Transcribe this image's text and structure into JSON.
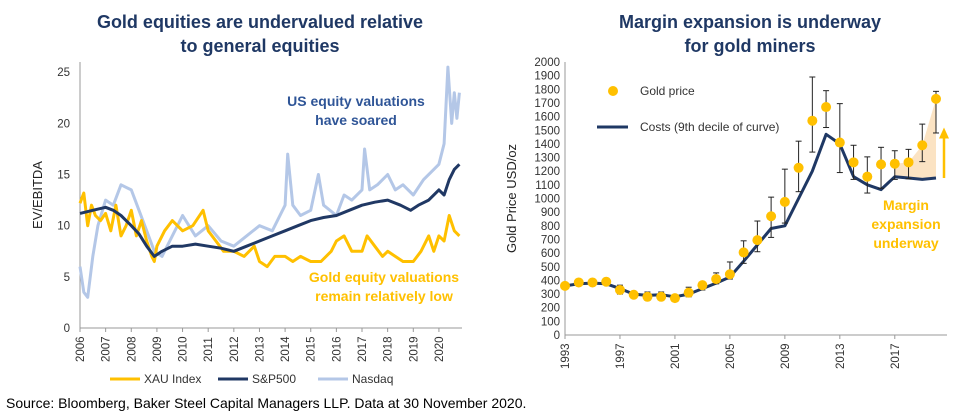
{
  "left_title": [
    "Gold equities are undervalued relative",
    "to general equities"
  ],
  "right_title": [
    "Margin expansion is underway",
    "for gold miners"
  ],
  "source": "Source: Bloomberg, Baker Steel Capital Managers LLP. Data at 30 November 2020.",
  "colors": {
    "xau": "#ffc000",
    "sp500": "#203864",
    "nasdaq": "#b4c7e7",
    "gold_dot": "#ffc000",
    "costs": "#1f3864",
    "shade": "#fbe0bd",
    "anno_blue": "#2f5597",
    "anno_gold": "#ffc000"
  },
  "chart_data": [
    {
      "type": "line",
      "title": "Gold equities are undervalued relative to general equities",
      "xlabel": "",
      "ylabel": "EV/EBITDA",
      "xlim": [
        2006,
        2020.9
      ],
      "ylim": [
        0,
        26
      ],
      "yticks": [
        0,
        5,
        10,
        15,
        20,
        25
      ],
      "xticks": [
        "2006",
        "2007",
        "2008",
        "2009",
        "2010",
        "2011",
        "2012",
        "2013",
        "2014",
        "2015",
        "2016",
        "2017",
        "2018",
        "2019",
        "2020"
      ],
      "legend_position": "bottom",
      "annotations": [
        {
          "text": [
            "US equity valuations",
            "have soared"
          ],
          "color": "blue"
        },
        {
          "text": [
            "Gold equity valuations",
            "remain relatively low"
          ],
          "color": "gold"
        }
      ],
      "series": [
        {
          "name": "XAU Index",
          "x": [
            2006.0,
            2006.15,
            2006.3,
            2006.45,
            2006.6,
            2006.8,
            2007.0,
            2007.2,
            2007.4,
            2007.6,
            2007.8,
            2008.0,
            2008.2,
            2008.4,
            2008.6,
            2008.8,
            2008.9,
            2009.0,
            2009.3,
            2009.6,
            2010.0,
            2010.4,
            2010.8,
            2011.0,
            2011.3,
            2011.6,
            2012.0,
            2012.4,
            2012.8,
            2013.0,
            2013.3,
            2013.6,
            2014.0,
            2014.3,
            2014.6,
            2015.0,
            2015.4,
            2015.8,
            2016.0,
            2016.3,
            2016.6,
            2017.0,
            2017.2,
            2017.5,
            2017.8,
            2018.0,
            2018.3,
            2018.6,
            2019.0,
            2019.3,
            2019.6,
            2019.8,
            2020.0,
            2020.2,
            2020.4,
            2020.6,
            2020.8
          ],
          "y": [
            12.2,
            13.2,
            10.0,
            12.0,
            11.0,
            10.5,
            11.2,
            9.5,
            12.0,
            9.0,
            10.0,
            11.5,
            9.0,
            10.5,
            8.5,
            7.0,
            6.5,
            8.0,
            9.5,
            10.5,
            9.5,
            10.0,
            11.5,
            9.5,
            8.5,
            7.5,
            7.5,
            7.0,
            8.0,
            6.5,
            6.0,
            7.0,
            7.0,
            6.5,
            7.0,
            6.5,
            6.5,
            7.5,
            8.5,
            9.0,
            7.5,
            7.5,
            9.0,
            8.0,
            7.0,
            7.5,
            7.0,
            6.5,
            6.5,
            7.5,
            9.0,
            7.5,
            9.0,
            8.5,
            11.0,
            9.5,
            9.0
          ]
        },
        {
          "name": "S&P500",
          "x": [
            2006.0,
            2006.5,
            2007.0,
            2007.3,
            2007.6,
            2008.0,
            2008.3,
            2008.6,
            2008.9,
            2009.2,
            2009.6,
            2010.0,
            2010.5,
            2011.0,
            2011.5,
            2012.0,
            2012.5,
            2013.0,
            2013.5,
            2014.0,
            2014.5,
            2015.0,
            2015.5,
            2016.0,
            2016.5,
            2017.0,
            2017.5,
            2018.0,
            2018.5,
            2018.9,
            2019.2,
            2019.6,
            2020.0,
            2020.2,
            2020.4,
            2020.6,
            2020.8
          ],
          "y": [
            11.2,
            11.5,
            11.8,
            11.5,
            11.0,
            10.0,
            9.2,
            8.0,
            7.0,
            7.5,
            8.0,
            8.0,
            8.2,
            8.0,
            7.8,
            7.5,
            8.0,
            8.5,
            9.0,
            9.5,
            10.0,
            10.5,
            10.8,
            11.0,
            11.5,
            12.0,
            12.3,
            12.5,
            12.0,
            11.5,
            12.0,
            12.5,
            13.5,
            13.0,
            14.5,
            15.5,
            16.0
          ]
        },
        {
          "name": "Nasdaq",
          "x": [
            2006.0,
            2006.15,
            2006.3,
            2006.5,
            2006.7,
            2007.0,
            2007.3,
            2007.6,
            2008.0,
            2008.3,
            2008.6,
            2008.9,
            2009.2,
            2009.6,
            2010.0,
            2010.5,
            2011.0,
            2011.5,
            2012.0,
            2012.5,
            2013.0,
            2013.5,
            2014.0,
            2014.1,
            2014.3,
            2014.6,
            2015.0,
            2015.3,
            2015.5,
            2016.0,
            2016.3,
            2016.6,
            2017.0,
            2017.1,
            2017.3,
            2017.6,
            2018.0,
            2018.3,
            2018.6,
            2019.0,
            2019.4,
            2019.8,
            2020.0,
            2020.2,
            2020.35,
            2020.5,
            2020.6,
            2020.7,
            2020.8
          ],
          "y": [
            6.0,
            3.5,
            3.0,
            7.0,
            10.0,
            12.5,
            12.0,
            14.0,
            13.5,
            11.5,
            9.5,
            7.5,
            7.0,
            9.0,
            11.0,
            9.0,
            10.0,
            8.5,
            8.0,
            9.0,
            10.0,
            9.5,
            12.0,
            17.0,
            12.0,
            11.0,
            11.5,
            15.0,
            12.0,
            11.0,
            13.0,
            12.5,
            13.5,
            17.5,
            13.5,
            14.0,
            15.0,
            13.5,
            14.0,
            13.0,
            14.5,
            15.5,
            16.0,
            18.0,
            25.5,
            20.0,
            23.0,
            20.5,
            23.0
          ]
        }
      ]
    },
    {
      "type": "line",
      "title": "Margin expansion is underway for gold miners",
      "xlabel": "",
      "ylabel": "Gold Price USD/oz",
      "xlim": [
        1993,
        2020.8
      ],
      "ylim": [
        0,
        2000
      ],
      "yticks": [
        0,
        100,
        200,
        300,
        400,
        500,
        600,
        700,
        800,
        900,
        1000,
        1100,
        1200,
        1300,
        1400,
        1500,
        1600,
        1700,
        1800,
        1900,
        2000
      ],
      "xticks": [
        "1993",
        "1997",
        "2001",
        "2005",
        "2009",
        "2013",
        "2017"
      ],
      "legend_position": "top-left",
      "annotations": [
        {
          "text": [
            "Margin",
            "expansion",
            "underway"
          ],
          "color": "gold"
        }
      ],
      "series": [
        {
          "name": "Gold price",
          "type": "scatter-errorbar",
          "x": [
            1993,
            1994,
            1995,
            1996,
            1997,
            1998,
            1999,
            2000,
            2001,
            2002,
            2003,
            2004,
            2005,
            2006,
            2007,
            2008,
            2009,
            2010,
            2011,
            2012,
            2013,
            2014,
            2015,
            2016,
            2017,
            2018,
            2019,
            2020
          ],
          "y": [
            360,
            385,
            385,
            390,
            330,
            295,
            280,
            280,
            270,
            310,
            365,
            410,
            445,
            605,
            695,
            870,
            975,
            1225,
            1570,
            1670,
            1410,
            1265,
            1160,
            1250,
            1255,
            1265,
            1390,
            1730
          ],
          "err_low": [
            340,
            375,
            375,
            370,
            300,
            275,
            255,
            265,
            255,
            280,
            330,
            375,
            410,
            525,
            610,
            715,
            820,
            1050,
            1340,
            1520,
            1190,
            1140,
            1040,
            1075,
            1140,
            1145,
            1270,
            1480
          ],
          "err_high": [
            385,
            395,
            395,
            415,
            365,
            310,
            315,
            315,
            290,
            350,
            385,
            455,
            535,
            690,
            835,
            1010,
            1215,
            1420,
            1890,
            1790,
            1695,
            1390,
            1305,
            1375,
            1350,
            1360,
            1545,
            1785
          ]
        },
        {
          "name": "Costs (9th decile of curve)",
          "x": [
            1993,
            1994,
            1995,
            1996,
            1997,
            1998,
            1999,
            2000,
            2001,
            2002,
            2003,
            2004,
            2005,
            2006,
            2007,
            2008,
            2009,
            2010,
            2011,
            2012,
            2013,
            2014,
            2015,
            2016,
            2017,
            2018,
            2019,
            2020
          ],
          "y": [
            360,
            375,
            380,
            375,
            340,
            300,
            290,
            295,
            280,
            300,
            340,
            380,
            425,
            540,
            660,
            780,
            800,
            1000,
            1200,
            1470,
            1400,
            1160,
            1100,
            1065,
            1160,
            1150,
            1140,
            1150
          ]
        }
      ]
    }
  ]
}
